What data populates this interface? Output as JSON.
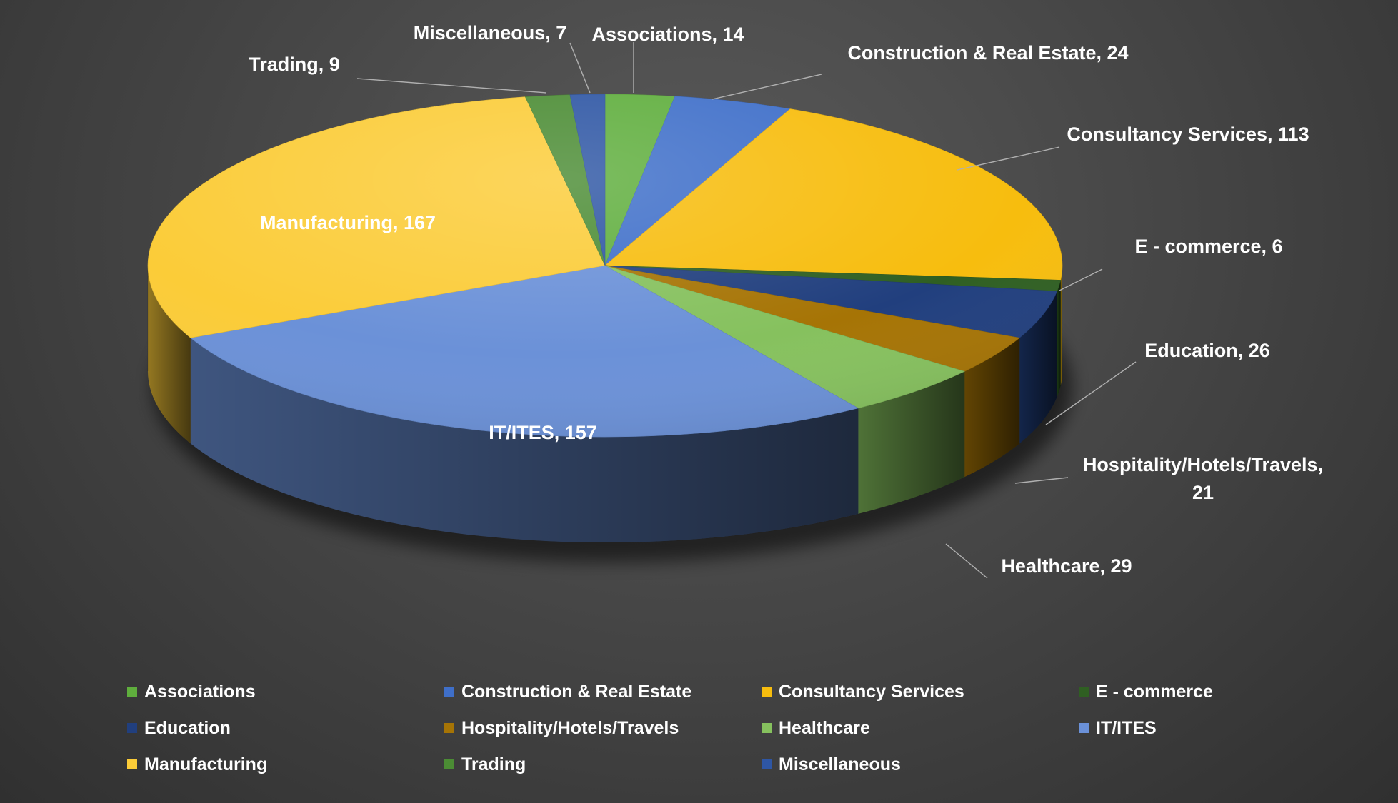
{
  "chart_data": {
    "type": "pie",
    "title": "",
    "three_d": true,
    "legend_position": "bottom",
    "slices": [
      {
        "label": "Associations",
        "value": 14,
        "data_label": "Associations, 14",
        "color": "#5fae3d"
      },
      {
        "label": "Construction & Real Estate",
        "value": 24,
        "data_label": "Construction & Real Estate, 24",
        "color": "#3f6fc9"
      },
      {
        "label": "Consultancy Services",
        "value": 113,
        "data_label": "Consultancy Services, 113",
        "color": "#f7bd0e"
      },
      {
        "label": "E - commerce",
        "value": 6,
        "data_label": "E - commerce, 6",
        "color": "#2f5f22"
      },
      {
        "label": "Education",
        "value": 26,
        "data_label": "Education, 26",
        "color": "#213f7e"
      },
      {
        "label": "Hospitality/Hotels/Travels",
        "value": 21,
        "data_label": "Hospitality/Hotels/Travels, 21",
        "color": "#a67405"
      },
      {
        "label": "Healthcare",
        "value": 29,
        "data_label": "Healthcare, 29",
        "color": "#86c15e"
      },
      {
        "label": "IT/ITES",
        "value": 157,
        "data_label": "IT/ITES, 157",
        "color": "#6b91d8"
      },
      {
        "label": "Manufacturing",
        "value": 167,
        "data_label": "Manufacturing, 167",
        "color": "#fbcc38"
      },
      {
        "label": "Trading",
        "value": 9,
        "data_label": "Trading, 9",
        "color": "#4b8c34"
      },
      {
        "label": "Miscellaneous",
        "value": 7,
        "data_label": "Miscellaneous, 7",
        "color": "#2e56a4"
      }
    ]
  },
  "colors": {
    "background": "#474747",
    "label_text": "#ffffff",
    "leader_line": "#b0b0b0"
  }
}
